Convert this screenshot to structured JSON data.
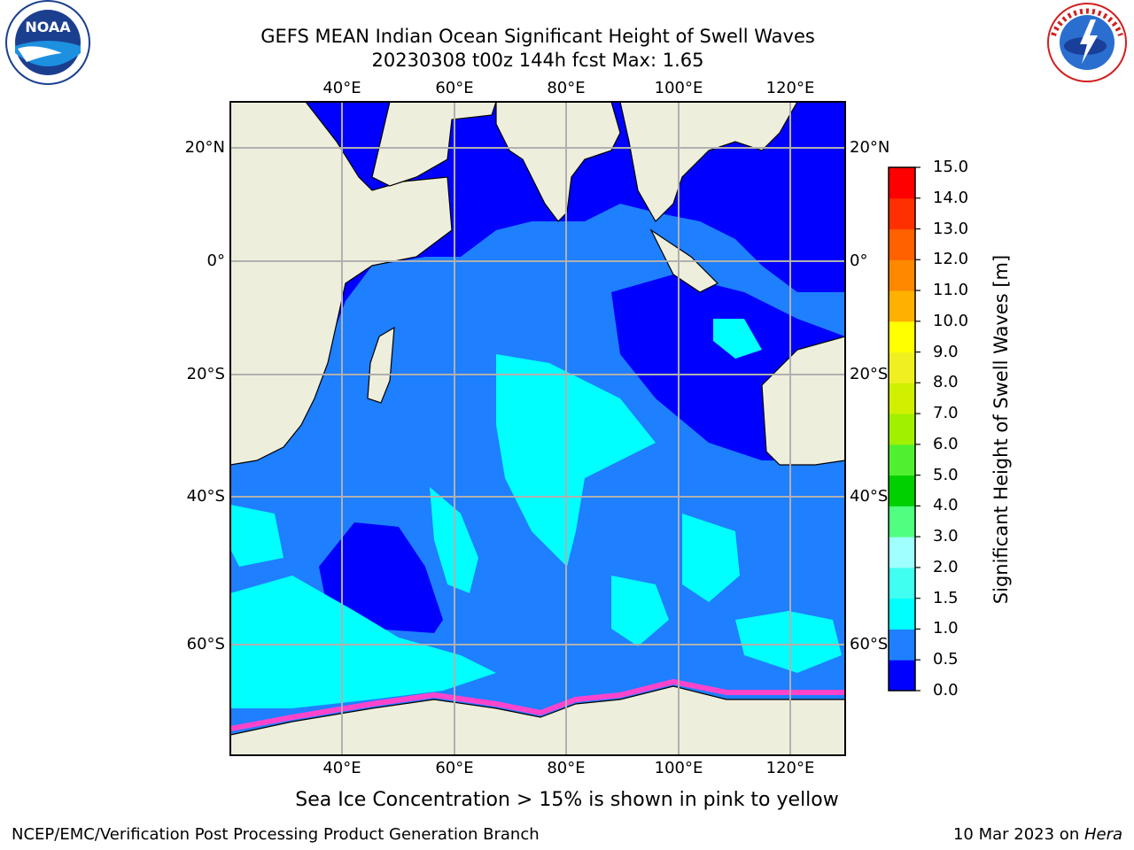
{
  "title": {
    "line1": "GEFS MEAN Indian Ocean Significant Height of Swell Waves",
    "line2": "20230308 t00z 144h fcst   Max: 1.65"
  },
  "logos": {
    "left": {
      "icon": "noaa-logo",
      "text": "NOAA"
    },
    "right": {
      "icon": "national-weather-service-logo",
      "text": "NATIONAL WEATHER SERVICE"
    }
  },
  "map": {
    "lon_ticks": [
      "40°E",
      "60°E",
      "80°E",
      "100°E",
      "120°E"
    ],
    "lat_ticks_left": [
      "20°N",
      "0°",
      "20°S",
      "40°S",
      "60°S"
    ],
    "lat_ticks_right": [
      "20°N",
      "0°",
      "20°S",
      "40°S",
      "60°S"
    ],
    "lon_range": [
      20,
      130
    ],
    "lat_range": [
      -72,
      28
    ],
    "grid": true,
    "colors": {
      "land": "#eeeedc",
      "gridline": "#b0b0b0",
      "sea_ice": "#ff44cc"
    }
  },
  "colorbar": {
    "label": "Significant Height of Swell Waves [m]",
    "tick_labels": [
      "0.0",
      "0.5",
      "1.0",
      "1.5",
      "2.0",
      "3.0",
      "4.0",
      "5.0",
      "6.0",
      "7.0",
      "8.0",
      "9.0",
      "10.0",
      "11.0",
      "12.0",
      "13.0",
      "14.0",
      "15.0"
    ],
    "bins": [
      {
        "range": "0.0-0.5",
        "color": "#0000ff"
      },
      {
        "range": "0.5-1.0",
        "color": "#1e7fff"
      },
      {
        "range": "1.0-1.5",
        "color": "#00ffff"
      },
      {
        "range": "1.5-2.0",
        "color": "#40fff0"
      },
      {
        "range": "2.0-3.0",
        "color": "#a0ffff"
      },
      {
        "range": "3.0-4.0",
        "color": "#50ff80"
      },
      {
        "range": "4.0-5.0",
        "color": "#00d000"
      },
      {
        "range": "5.0-6.0",
        "color": "#50f030"
      },
      {
        "range": "6.0-7.0",
        "color": "#a0f000"
      },
      {
        "range": "7.0-8.0",
        "color": "#d0f000"
      },
      {
        "range": "8.0-9.0",
        "color": "#f0f020"
      },
      {
        "range": "9.0-10.0",
        "color": "#ffff00"
      },
      {
        "range": "10.0-11.0",
        "color": "#ffb000"
      },
      {
        "range": "11.0-12.0",
        "color": "#ff8800"
      },
      {
        "range": "12.0-13.0",
        "color": "#ff6000"
      },
      {
        "range": "13.0-14.0",
        "color": "#ff3000"
      },
      {
        "range": "14.0-15.0",
        "color": "#ff0000"
      }
    ]
  },
  "caption": "Sea Ice Concentration > 15% is shown in pink to yellow",
  "footer": {
    "left": "NCEP/EMC/Verification Post Processing Product Generation Branch",
    "right_date": "10 Mar 2023 on ",
    "right_host": "Hera"
  }
}
